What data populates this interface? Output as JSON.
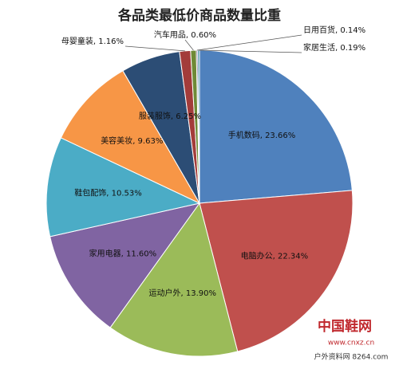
{
  "chart_data": {
    "type": "pie",
    "title": "各品类最低价商品数量比重",
    "categories": [
      "手机数码",
      "电脑办公",
      "运动户外",
      "家用电器",
      "鞋包配饰",
      "美容美妆",
      "服装服饰",
      "母婴童装",
      "汽车用品",
      "日用百货",
      "家居生活"
    ],
    "values": [
      23.66,
      22.34,
      13.9,
      11.6,
      10.53,
      9.63,
      6.25,
      1.16,
      0.6,
      0.14,
      0.19
    ],
    "value_labels": [
      "23.66%",
      "22.34%",
      "13.90%",
      "11.60%",
      "10.53%",
      "9.63%",
      "6.25%",
      "1.16%",
      "0.60%",
      "0.14%",
      "0.19%"
    ],
    "colors": [
      "#4f81bd",
      "#c0504d",
      "#9bbb59",
      "#8064a2",
      "#4bacc6",
      "#f79646",
      "#2c4d75",
      "#a33c3a",
      "#6f8a36",
      "#5a4378",
      "#3a8ca3"
    ]
  },
  "watermark": {
    "logo": "中国鞋网",
    "site": "户外资料网 8264.com",
    "url": "www.cnxz.cn"
  }
}
